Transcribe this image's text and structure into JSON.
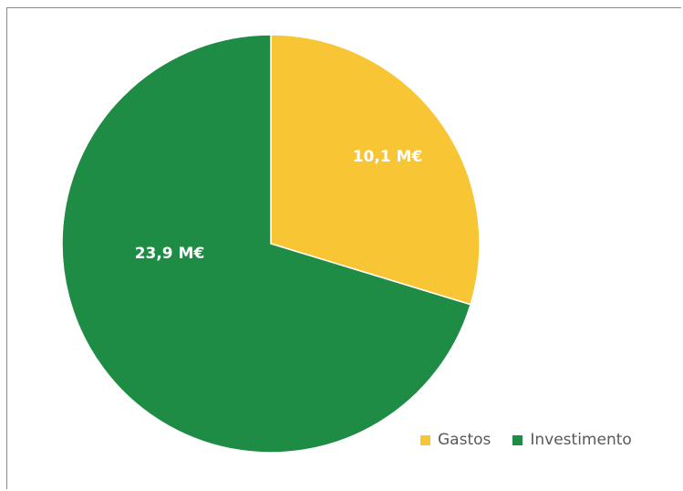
{
  "chart_data": {
    "type": "pie",
    "title": "",
    "slices": [
      {
        "label": "Gastos",
        "value": 10.1,
        "value_label": "10,1 M€",
        "color": "#F8C634"
      },
      {
        "label": "Investimento",
        "value": 23.9,
        "value_label": "23,9 M€",
        "color": "#1F8C45"
      }
    ],
    "legend_position": "bottom-right"
  }
}
